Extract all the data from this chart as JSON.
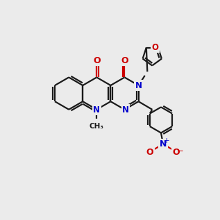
{
  "bg_color": "#ebebeb",
  "bc": "#1a1a1a",
  "nc": "#0000cc",
  "oc": "#cc0000",
  "lw": 1.6,
  "dg": 0.1,
  "fs": 8.5,
  "BL": 0.78
}
